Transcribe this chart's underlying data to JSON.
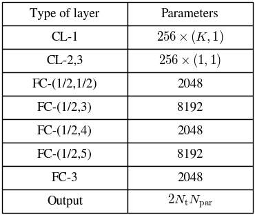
{
  "col_headers": [
    "Type of layer",
    "Parameters"
  ],
  "rows": [
    [
      "CL-1",
      "$256 \\times (K, 1)$"
    ],
    [
      "CL-2,3",
      "$256 \\times (1, 1)$"
    ],
    [
      "FC-(1/2,1/2)",
      "2048"
    ],
    [
      "FC-(1/2,3)",
      "8192"
    ],
    [
      "FC-(1/2,4)",
      "2048"
    ],
    [
      "FC-(1/2,5)",
      "8192"
    ],
    [
      "FC-3",
      "2048"
    ],
    [
      "Output",
      "$2N_{\\mathrm{t}}N_{\\mathrm{par}}$"
    ]
  ],
  "header_fontsize": 13.5,
  "cell_fontsize": 13.5,
  "bg_color": "#ffffff",
  "border_color": "#000000",
  "text_color": "#000000",
  "linewidth": 1.0
}
